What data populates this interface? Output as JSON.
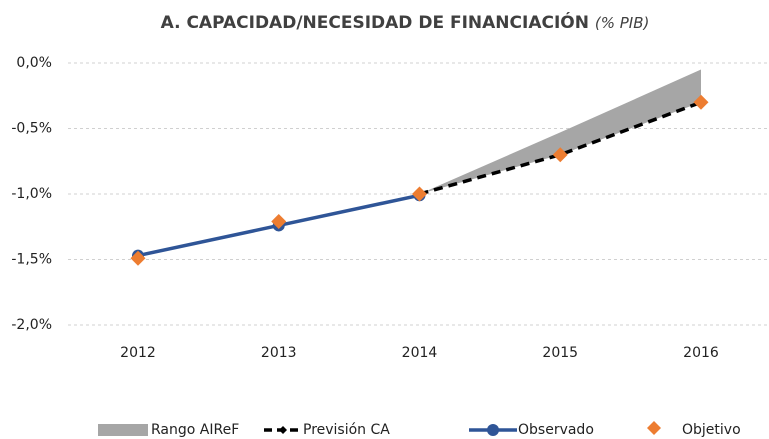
{
  "chart_data": {
    "type": "line",
    "title": "A. CAPACIDAD/NECESIDAD DE FINANCIACIÓN",
    "subtitle": "(% PIB)",
    "categories": [
      "2012",
      "2013",
      "2014",
      "2015",
      "2016"
    ],
    "ylim": [
      -2,
      0
    ],
    "yticks": [
      {
        "value": 0,
        "label": "0,0%"
      },
      {
        "value": -0.5,
        "label": "-0,5%"
      },
      {
        "value": -1,
        "label": "-1,0%"
      },
      {
        "value": -1.5,
        "label": "-1,5%"
      },
      {
        "value": -2,
        "label": "-2,0%"
      }
    ],
    "grid": true,
    "legend": "bottom",
    "series": [
      {
        "name": "Rango AIReF",
        "color": "#a6a6a6",
        "style": "band",
        "low": [
          null,
          null,
          -1.0,
          -0.7,
          -0.3
        ],
        "high": [
          null,
          null,
          -1.0,
          -0.53,
          -0.05
        ]
      },
      {
        "name": "Previsión CA",
        "color": "#000000",
        "style": "dashed",
        "values": [
          null,
          null,
          -1.0,
          -0.7,
          -0.3
        ]
      },
      {
        "name": "Observado",
        "color": "#2f5597",
        "style": "line",
        "values": [
          -1.47,
          -1.24,
          -1.01,
          null,
          null
        ]
      },
      {
        "name": "Objetivo",
        "color": "#ed7d31",
        "style": "diamond",
        "values": [
          -1.49,
          -1.21,
          -1.0,
          -0.7,
          -0.3
        ]
      }
    ]
  }
}
